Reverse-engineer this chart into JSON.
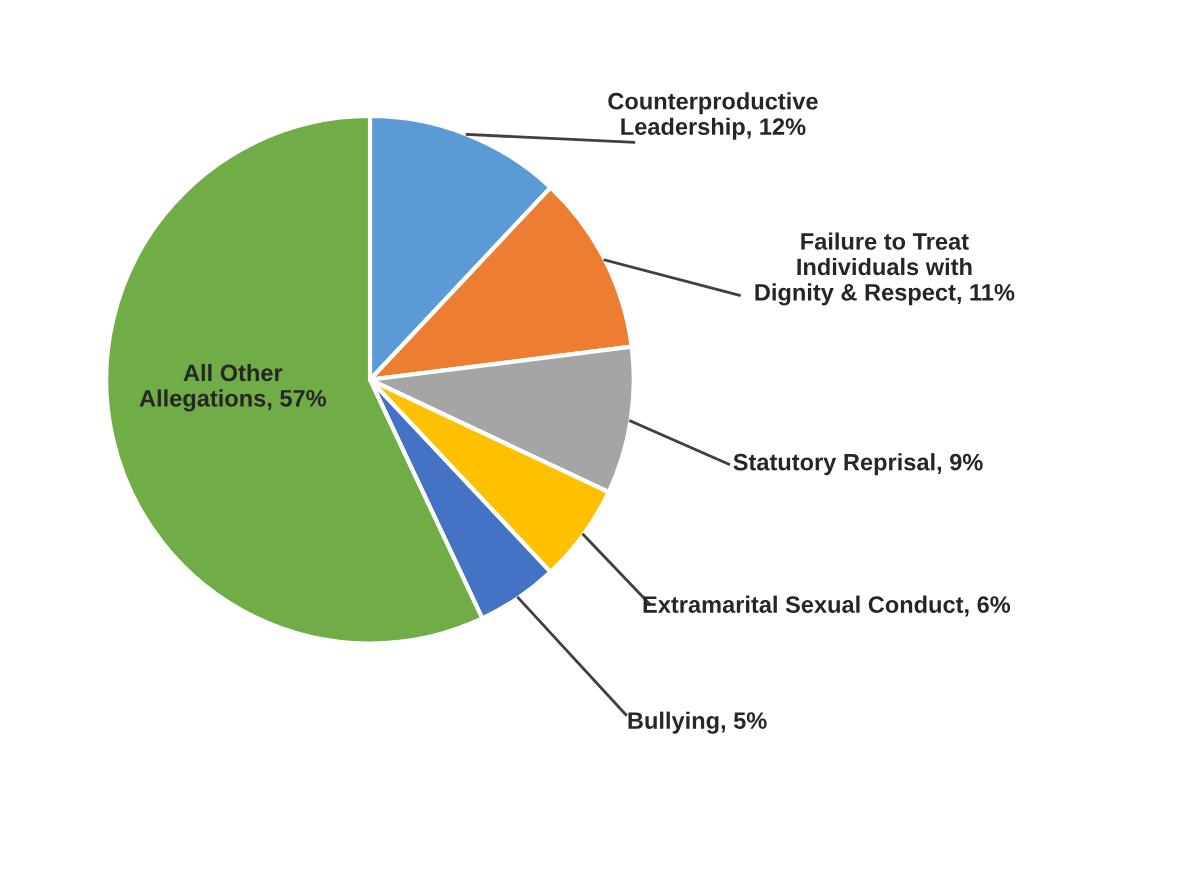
{
  "chart_data": {
    "type": "pie",
    "categories": [
      "Counterproductive\nLeadership",
      "Failure to Treat\nIndividuals with\nDignity & Respect",
      "Statutory Reprisal",
      "Extramarital Sexual Conduct",
      "Bullying",
      "All Other\nAllegations"
    ],
    "values": [
      12,
      11,
      9,
      6,
      5,
      57
    ],
    "value_labels": [
      "12%",
      "11%",
      "9%",
      "6%",
      "5%",
      "57%"
    ],
    "colors": [
      "#5b9bd5",
      "#ed7d31",
      "#a5a5a5",
      "#ffc000",
      "#4472c4",
      "#70ad47"
    ],
    "legend": false
  }
}
